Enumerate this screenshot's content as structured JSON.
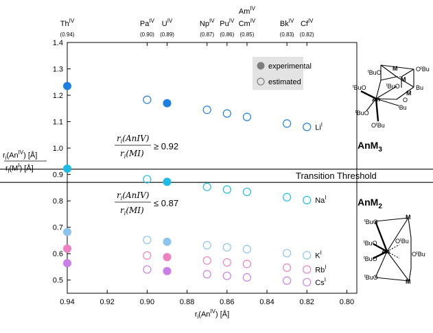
{
  "chart_data": {
    "type": "scatter",
    "xlabel_parts": {
      "main": "r",
      "sub": "i",
      "open": "(An",
      "sup": "IV",
      "close": ") [Å]"
    },
    "ylabel_top": {
      "main": "r",
      "sub": "i",
      "open": "(An",
      "sup": "IV",
      "close": ") [Å]"
    },
    "ylabel_bottom": {
      "main": "r",
      "sub": "i",
      "open": "(M",
      "sup": "I",
      "close": ") [Å]"
    },
    "xlim": [
      0.94,
      0.795
    ],
    "ylim": [
      0.45,
      1.4
    ],
    "x_ticks": [
      0.94,
      0.92,
      0.9,
      0.88,
      0.86,
      0.84,
      0.82,
      0.8
    ],
    "x_tick_labels": [
      "0.94",
      "0.92",
      "0.90",
      "0.88",
      "0.86",
      "0.84",
      "0.82",
      "0.80"
    ],
    "y_ticks": [
      0.5,
      0.6,
      0.7,
      0.8,
      0.9,
      1.0,
      1.1,
      1.2,
      1.3,
      1.4
    ],
    "y_tick_labels": [
      "0.5",
      "0.6",
      "0.7",
      "0.8",
      "0.9",
      "1.0",
      "1.1",
      "1.2",
      "1.3",
      "1.4"
    ],
    "top_elements": [
      {
        "name": "Th",
        "sup": "IV",
        "radius": "(0.94)",
        "x": 0.94,
        "row": 0
      },
      {
        "name": "Pa",
        "sup": "IV",
        "radius": "(0.90)",
        "x": 0.9,
        "row": 0
      },
      {
        "name": "U",
        "sup": "IV",
        "radius": "(0.89)",
        "x": 0.89,
        "row": 0
      },
      {
        "name": "Np",
        "sup": "IV",
        "radius": "(0.87)",
        "x": 0.87,
        "row": 0
      },
      {
        "name": "Pu",
        "sup": "IV",
        "radius": "(0.86)",
        "x": 0.86,
        "row": 0
      },
      {
        "name": "Am",
        "sup": "IV",
        "radius": "",
        "x": 0.85,
        "row": -1
      },
      {
        "name": "Cm",
        "sup": "IV",
        "radius": "(0.85)",
        "x": 0.85,
        "row": 0
      },
      {
        "name": "Bk",
        "sup": "IV",
        "radius": "(0.83)",
        "x": 0.83,
        "row": 0
      },
      {
        "name": "Cf",
        "sup": "IV",
        "radius": "(0.82)",
        "x": 0.82,
        "row": 0
      }
    ],
    "series": [
      {
        "name": "Li",
        "sup": "I",
        "color": "#1E7FE0",
        "experimental": [
          [
            0.94,
            1.235
          ],
          [
            0.89,
            1.17
          ]
        ],
        "estimated": [
          [
            0.9,
            1.183
          ],
          [
            0.87,
            1.145
          ],
          [
            0.86,
            1.131
          ],
          [
            0.85,
            1.118
          ],
          [
            0.83,
            1.093
          ],
          [
            0.82,
            1.08
          ]
        ]
      },
      {
        "name": "Na",
        "sup": "I",
        "color": "#1EBBE6",
        "experimental": [
          [
            0.94,
            0.922
          ],
          [
            0.89,
            0.872
          ]
        ],
        "estimated": [
          [
            0.9,
            0.882
          ],
          [
            0.87,
            0.853
          ],
          [
            0.86,
            0.843
          ],
          [
            0.85,
            0.834
          ],
          [
            0.83,
            0.814
          ],
          [
            0.82,
            0.803
          ]
        ]
      },
      {
        "name": "K",
        "sup": "I",
        "color": "#8CC4EE",
        "experimental": [
          [
            0.94,
            0.682
          ],
          [
            0.89,
            0.645
          ]
        ],
        "estimated": [
          [
            0.9,
            0.652
          ],
          [
            0.87,
            0.632
          ],
          [
            0.86,
            0.624
          ],
          [
            0.85,
            0.617
          ],
          [
            0.83,
            0.602
          ],
          [
            0.82,
            0.594
          ]
        ]
      },
      {
        "name": "Rb",
        "sup": "I",
        "color": "#EE7FC0",
        "experimental": [
          [
            0.94,
            0.619
          ],
          [
            0.89,
            0.587
          ]
        ],
        "estimated": [
          [
            0.9,
            0.593
          ],
          [
            0.87,
            0.574
          ],
          [
            0.86,
            0.567
          ],
          [
            0.85,
            0.561
          ],
          [
            0.83,
            0.547
          ],
          [
            0.82,
            0.54
          ]
        ]
      },
      {
        "name": "Cs",
        "sup": "I",
        "color": "#C97FE6",
        "experimental": [
          [
            0.94,
            0.564
          ],
          [
            0.89,
            0.534
          ]
        ],
        "estimated": [
          [
            0.9,
            0.54
          ],
          [
            0.87,
            0.522
          ],
          [
            0.86,
            0.516
          ],
          [
            0.85,
            0.51
          ],
          [
            0.83,
            0.498
          ],
          [
            0.82,
            0.492
          ]
        ]
      }
    ],
    "threshold_lines": [
      0.92,
      0.87
    ],
    "threshold_label": "Transition Threshold",
    "legend": {
      "experimental": "experimental",
      "estimated": "estimated",
      "position": "top-right"
    },
    "ratio_upper": {
      "num": "r_i(AnIV)",
      "den": "r_i(MI)",
      "op": "≥ 0.92"
    },
    "ratio_lower": {
      "num": "r_i(AnIV)",
      "den": "r_i(MI)",
      "op": "≤ 0.87"
    },
    "structures": [
      {
        "label": "AnM",
        "sub": "3"
      },
      {
        "label": "AnM",
        "sub": "2"
      }
    ]
  },
  "colors": {
    "legend_box": "#E3E3E3",
    "marker_exp_legend": "#7F7F7F",
    "marker_est_legend": "#7F7F7F"
  }
}
